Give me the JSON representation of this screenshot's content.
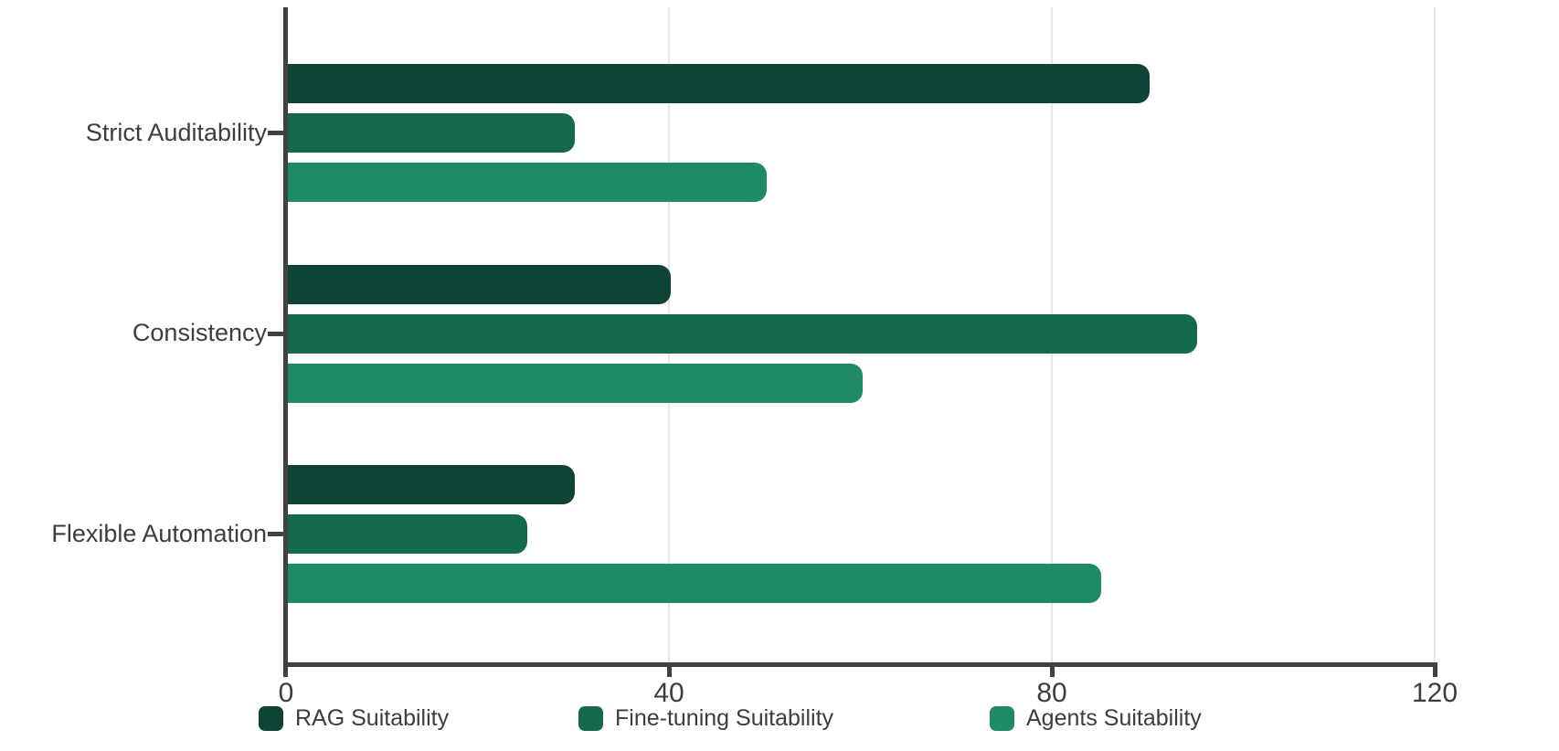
{
  "chart_data": {
    "type": "bar",
    "orientation": "horizontal",
    "title": "",
    "categories": [
      "Strict Auditability",
      "Consistency",
      "Flexible Automation"
    ],
    "series": [
      {
        "name": "RAG Suitability",
        "color": "#0d4437",
        "values": [
          90,
          40,
          30
        ]
      },
      {
        "name": "Fine-tuning Suitability",
        "color": "#156a4e",
        "values": [
          30,
          95,
          25
        ]
      },
      {
        "name": "Agents Suitability",
        "color": "#1e8a68",
        "values": [
          50,
          60,
          85
        ]
      }
    ],
    "xlim": [
      0,
      120
    ],
    "x_ticks": [
      0,
      40,
      80,
      120
    ],
    "x_tick_labels": [
      "0",
      "40",
      "80",
      "120"
    ],
    "grid": "vertical-gridlines-at-40-80-120",
    "legend_position": "bottom"
  },
  "style": {
    "background": "#ffffff",
    "axis_color": "#414141",
    "grid_color": "#e7e7e7",
    "label_color": "#3d3d3d"
  }
}
